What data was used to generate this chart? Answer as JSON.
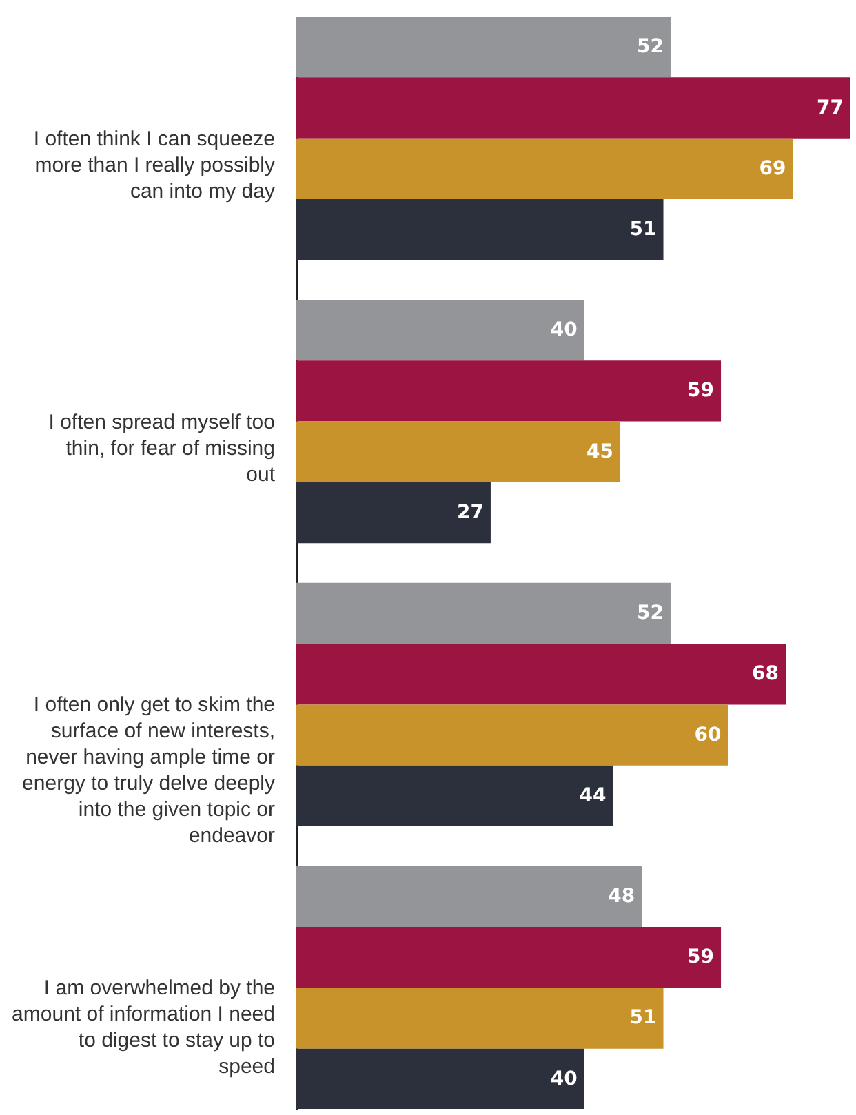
{
  "chart_data": {
    "type": "bar",
    "orientation": "horizontal",
    "data_labels": true,
    "grid": false,
    "legend": false,
    "categories": [
      "I often think I can squeeze more than I really possibly can into my day",
      "I often spread myself too thin, for fear of missing out",
      "I often only get to skim the surface of new interests, never having ample time or energy to truly delve deeply into the given topic or endeavor",
      "I am overwhelmed by the amount of information I need to digest to stay up to speed"
    ],
    "series": [
      {
        "color": "#939598",
        "values": [
          52,
          40,
          52,
          48
        ]
      },
      {
        "color": "#9b1442",
        "values": [
          77,
          59,
          68,
          59
        ]
      },
      {
        "color": "#c8932a",
        "values": [
          69,
          45,
          60,
          51
        ]
      },
      {
        "color": "#2b303c",
        "values": [
          51,
          27,
          44,
          40
        ]
      }
    ]
  }
}
